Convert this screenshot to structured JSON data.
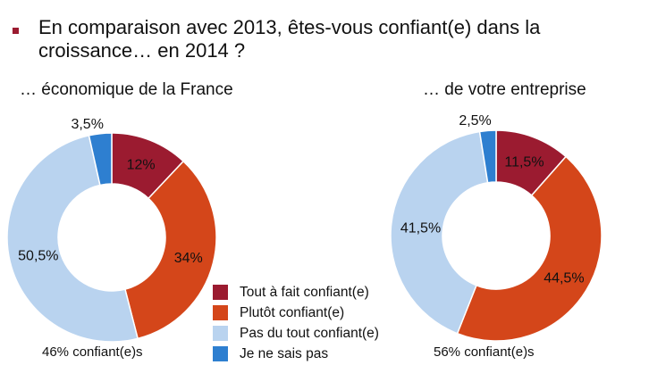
{
  "title": "En comparaison avec 2013, êtes-vous confiant(e) dans la croissance… en 2014 ?",
  "chart_data": [
    {
      "type": "pie",
      "variant": "donut",
      "title": "… économique de la France",
      "footer": "46% confiant(e)s",
      "categories": [
        "Tout à fait confiant(e)",
        "Plutôt confiant(e)",
        "Pas du tout confiant(e)",
        "Je ne sais pas"
      ],
      "values": [
        12,
        34,
        50.5,
        3.5
      ],
      "labels": [
        "12%",
        "34%",
        "50,5%",
        "3,5%"
      ]
    },
    {
      "type": "pie",
      "variant": "donut",
      "title": "… de votre entreprise",
      "footer": "56% confiant(e)s",
      "categories": [
        "Tout à fait confiant(e)",
        "Plutôt confiant(e)",
        "Pas du tout confiant(e)",
        "Je ne sais pas"
      ],
      "values": [
        11.5,
        44.5,
        41.5,
        2.5
      ],
      "labels": [
        "11,5%",
        "44,5%",
        "41,5%",
        "2,5%"
      ]
    }
  ],
  "legend": [
    "Tout à fait confiant(e)",
    "Plutôt confiant(e)",
    "Pas du tout confiant(e)",
    "Je ne sais pas"
  ],
  "colors": [
    "#9b1b30",
    "#d4461a",
    "#b9d3ef",
    "#2e7fd0"
  ]
}
